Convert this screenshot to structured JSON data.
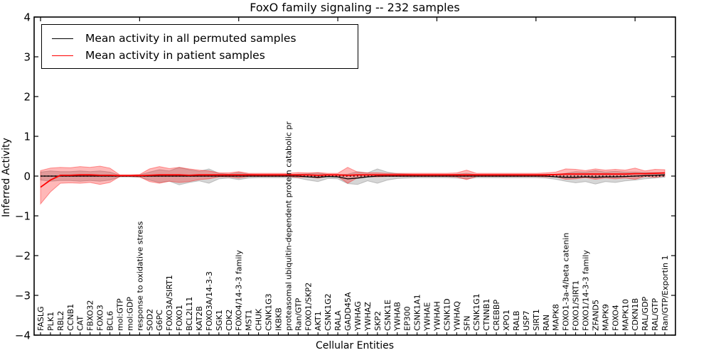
{
  "chart_data": {
    "type": "line",
    "title": "FoxO family signaling -- 232 samples",
    "xlabel": "Cellular Entities",
    "ylabel": "Inferred Activity",
    "ylim": [
      -4,
      4
    ],
    "yticks": [
      4,
      3,
      2,
      1,
      0,
      -1,
      -2,
      -3,
      -4
    ],
    "ytick_labels": [
      "4",
      "3",
      "2",
      "1",
      "0",
      "−1",
      "−2",
      "−3",
      "−4"
    ],
    "grid": false,
    "legend_position": "upper left",
    "baseline": {
      "y": 0,
      "style": "dotted",
      "color": "#000000"
    },
    "categories": [
      "FASLG",
      "PLK1",
      "RBL2",
      "CCNB1",
      "CAT",
      "FBXO32",
      "FOXO3",
      "BCL6",
      "mol:GTP",
      "mol:GDP",
      "response to oxidative stress",
      "SOD2",
      "G6PC",
      "FOXO3A/SIRT1",
      "FOXO1",
      "BCL2L11",
      "KAT2B",
      "FOXO3A/14-3-3",
      "SGK1",
      "CDK2",
      "FOXO4/14-3-3 family",
      "MST1",
      "CHUK",
      "CSNK1G3",
      "IKBKB",
      "proteasomal ubiquitin-dependent protein catabolic pr",
      "Ran/GTP",
      "FOXO1/SKP2",
      "AKT1",
      "CSNK1G2",
      "RALA",
      "GADD45A",
      "YWHAG",
      "YWHAZ",
      "SKP2",
      "CSNK1E",
      "YWHAB",
      "EP300",
      "CSNK1A1",
      "YWHAE",
      "YWHAH",
      "CSNK1D",
      "YWHAQ",
      "SFN",
      "CSNK1G1",
      "CTNNB1",
      "CREBBP",
      "XPO1",
      "RALB",
      "USP7",
      "SIRT1",
      "RAN",
      "MAPK8",
      "FOXO1-3a-4/beta catenin",
      "FOXO1/SIRT1",
      "FOXO1/14-3-3 family",
      "ZFAND5",
      "MAPK9",
      "FOXO4",
      "MAPK10",
      "CDKN1B",
      "RAL/GDP",
      "RAL/GTP",
      "Ran/GTP/Exportin 1"
    ],
    "series": [
      {
        "name": "Mean activity in all permuted samples",
        "color": "#000000",
        "band_color": "#787878",
        "band_alpha": 0.3,
        "values": [
          0,
          0,
          0,
          0,
          0,
          0,
          0,
          0,
          0,
          0,
          0,
          0,
          0,
          0,
          0,
          0,
          0,
          0,
          0,
          0,
          0,
          0,
          0,
          0,
          0,
          0,
          0,
          -0.02,
          -0.03,
          -0.01,
          -0.02,
          -0.07,
          -0.05,
          -0.02,
          0,
          0,
          0,
          0,
          0,
          0,
          0,
          0,
          0,
          0,
          0,
          0,
          0,
          0,
          0,
          0,
          0,
          0,
          -0.02,
          -0.03,
          -0.03,
          -0.02,
          -0.03,
          -0.02,
          -0.02,
          -0.01,
          0,
          0.01,
          0.02,
          0.03
        ],
        "band": [
          0.1,
          0.13,
          0.11,
          0.11,
          0.13,
          0.11,
          0.13,
          0.1,
          0.02,
          0.02,
          0.03,
          0.1,
          0.16,
          0.13,
          0.22,
          0.16,
          0.12,
          0.18,
          0.07,
          0.05,
          0.09,
          0.05,
          0.04,
          0.04,
          0.04,
          0.04,
          0.05,
          0.08,
          0.11,
          0.05,
          0.05,
          0.12,
          0.16,
          0.1,
          0.18,
          0.1,
          0.06,
          0.05,
          0.04,
          0.04,
          0.04,
          0.04,
          0.05,
          0.07,
          0.04,
          0.04,
          0.04,
          0.04,
          0.04,
          0.04,
          0.04,
          0.05,
          0.06,
          0.1,
          0.14,
          0.12,
          0.17,
          0.12,
          0.14,
          0.11,
          0.1,
          0.08,
          0.07,
          0.06
        ]
      },
      {
        "name": "Mean activity in patient samples",
        "color": "#ff0000",
        "band_color": "#ff0000",
        "band_alpha": 0.28,
        "values": [
          -0.28,
          -0.1,
          0.02,
          0.02,
          0.03,
          0.03,
          0.02,
          0.02,
          0.01,
          0.01,
          0.01,
          0.02,
          0.03,
          0.03,
          0.03,
          0.02,
          0.03,
          0.03,
          0.03,
          0.03,
          0.03,
          0.03,
          0.03,
          0.03,
          0.03,
          0.03,
          0.03,
          0.03,
          0.02,
          0.03,
          0.03,
          0.02,
          0.03,
          0.03,
          0.03,
          0.03,
          0.03,
          0.03,
          0.03,
          0.03,
          0.03,
          0.03,
          0.03,
          0.03,
          0.03,
          0.03,
          0.03,
          0.03,
          0.03,
          0.03,
          0.03,
          0.03,
          0.04,
          0.05,
          0.05,
          0.05,
          0.05,
          0.05,
          0.05,
          0.05,
          0.06,
          0.06,
          0.07,
          0.08
        ],
        "band": [
          0.42,
          0.3,
          0.2,
          0.19,
          0.21,
          0.19,
          0.23,
          0.18,
          0.02,
          0.02,
          0.03,
          0.16,
          0.21,
          0.16,
          0.19,
          0.16,
          0.12,
          0.1,
          0.05,
          0.05,
          0.08,
          0.04,
          0.04,
          0.04,
          0.04,
          0.04,
          0.06,
          0.05,
          0.07,
          0.04,
          0.04,
          0.2,
          0.07,
          0.05,
          0.05,
          0.04,
          0.04,
          0.04,
          0.04,
          0.04,
          0.04,
          0.04,
          0.05,
          0.12,
          0.04,
          0.04,
          0.04,
          0.04,
          0.04,
          0.04,
          0.04,
          0.05,
          0.06,
          0.13,
          0.12,
          0.09,
          0.13,
          0.1,
          0.12,
          0.1,
          0.14,
          0.07,
          0.1,
          0.08
        ]
      }
    ]
  }
}
